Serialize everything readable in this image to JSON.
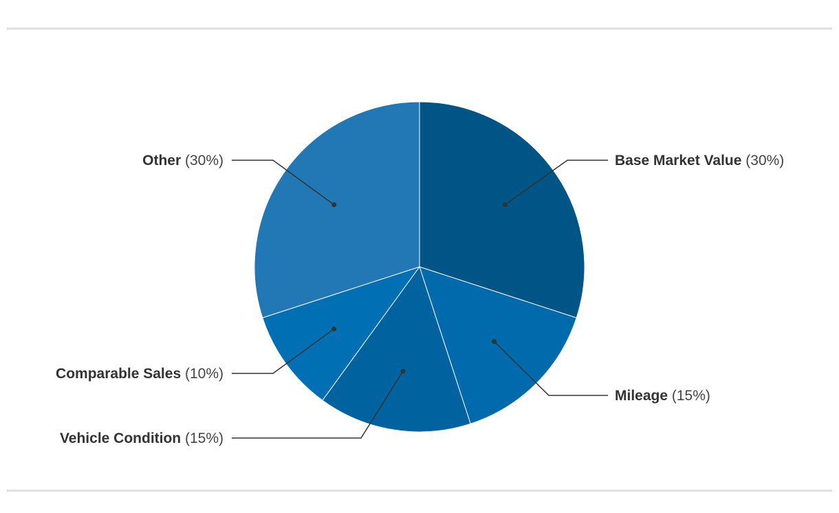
{
  "chart_data": {
    "type": "pie",
    "start_angle_deg": 0,
    "direction": "clockwise",
    "slices": [
      {
        "name": "Base Market Value",
        "value": 30,
        "label_pct": "(30%)",
        "color": "#005587"
      },
      {
        "name": "Mileage",
        "value": 15,
        "label_pct": "(15%)",
        "color": "#006aad"
      },
      {
        "name": "Vehicle Condition",
        "value": 15,
        "label_pct": "(15%)",
        "color": "#00629f"
      },
      {
        "name": "Comparable Sales",
        "value": 10,
        "label_pct": "(10%)",
        "color": "#006fb3"
      },
      {
        "name": "Other",
        "value": 30,
        "label_pct": "(30%)",
        "color": "#2277b5"
      }
    ]
  }
}
